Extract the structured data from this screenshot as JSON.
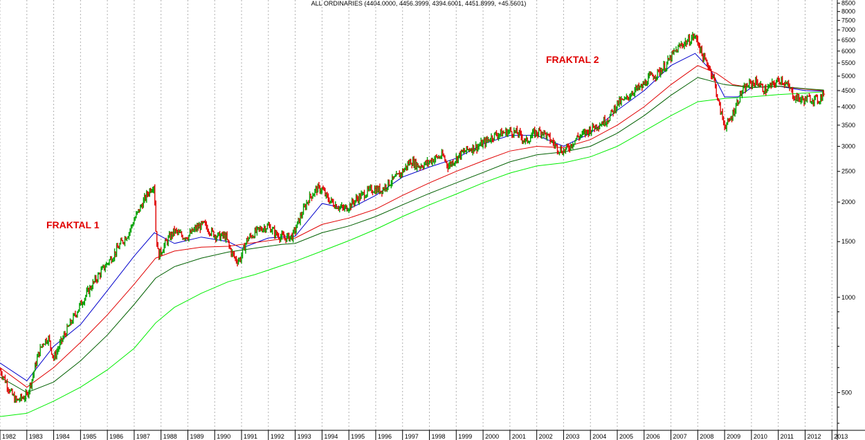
{
  "chart_data": {
    "type": "line",
    "title": "ALL ORDINARIES (4404.0000, 4456.3999, 4394.6001, 4451.8999, +45.5601)",
    "y_scale": "log",
    "ylim": [
      380,
      8700
    ],
    "xlim": [
      1982.0,
      2013.2
    ],
    "x_ticks": [
      "1982",
      "1983",
      "1984",
      "1985",
      "1986",
      "1987",
      "1988",
      "1989",
      "1990",
      "1991",
      "1992",
      "1993",
      "1994",
      "1995",
      "1996",
      "1997",
      "1998",
      "1999",
      "2000",
      "2001",
      "2002",
      "2003",
      "2004",
      "2005",
      "2006",
      "2007",
      "2008",
      "2009",
      "2010",
      "2011",
      "2012",
      "2013"
    ],
    "y_ticks": [
      500,
      1000,
      1500,
      2000,
      2500,
      3000,
      3500,
      4000,
      4500,
      5000,
      5500,
      6000,
      6500,
      7000,
      7500,
      8000,
      8500
    ],
    "grid": "vertical dotted",
    "annotations": [
      {
        "text": "FRAKTAL 1",
        "x": 1983.8,
        "y": 1650
      },
      {
        "text": "FRAKTAL 2",
        "x": 2005.4,
        "y": 6200
      }
    ],
    "price_series": {
      "name": "",
      "up_color": "#00a000",
      "down_color": "#e00000",
      "x": [
        1982.0,
        1982.2,
        1982.4,
        1982.6,
        1982.8,
        1983.0,
        1983.2,
        1983.4,
        1983.6,
        1983.8,
        1984.0,
        1984.2,
        1984.4,
        1984.6,
        1984.8,
        1985.0,
        1985.3,
        1985.6,
        1985.9,
        1986.2,
        1986.5,
        1986.8,
        1987.0,
        1987.2,
        1987.4,
        1987.6,
        1987.75,
        1987.8,
        1987.9,
        1988.2,
        1988.5,
        1988.8,
        1989.0,
        1989.3,
        1989.6,
        1989.9,
        1990.1,
        1990.4,
        1990.6,
        1990.8,
        1990.95,
        1991.2,
        1991.5,
        1991.8,
        1992.0,
        1992.3,
        1992.6,
        1992.9,
        1993.2,
        1993.5,
        1993.8,
        1994.0,
        1994.2,
        1994.5,
        1994.8,
        1995.0,
        1995.3,
        1995.6,
        1995.9,
        1996.2,
        1996.5,
        1996.8,
        1997.0,
        1997.3,
        1997.6,
        1997.9,
        1998.2,
        1998.5,
        1998.7,
        1998.9,
        1999.2,
        1999.5,
        1999.8,
        2000.1,
        2000.4,
        2000.7,
        2001.0,
        2001.3,
        2001.6,
        2001.9,
        2002.2,
        2002.5,
        2002.8,
        2003.0,
        2003.2,
        2003.5,
        2003.8,
        2004.1,
        2004.4,
        2004.7,
        2005.0,
        2005.3,
        2005.6,
        2005.9,
        2006.2,
        2006.5,
        2006.8,
        2007.1,
        2007.4,
        2007.7,
        2007.85,
        2008.0,
        2008.2,
        2008.4,
        2008.6,
        2008.8,
        2009.0,
        2009.15,
        2009.3,
        2009.6,
        2009.9,
        2010.2,
        2010.5,
        2010.8,
        2011.1,
        2011.4,
        2011.6,
        2011.9,
        2012.2,
        2012.5,
        2012.7
      ],
      "close": [
        590,
        545,
        500,
        470,
        480,
        490,
        555,
        650,
        720,
        745,
        640,
        700,
        760,
        820,
        880,
        950,
        1050,
        1150,
        1250,
        1350,
        1480,
        1600,
        1760,
        1900,
        2050,
        2200,
        2280,
        1650,
        1350,
        1500,
        1620,
        1560,
        1560,
        1650,
        1700,
        1600,
        1560,
        1560,
        1400,
        1310,
        1320,
        1520,
        1600,
        1660,
        1680,
        1580,
        1540,
        1560,
        1800,
        2050,
        2200,
        2200,
        2050,
        1960,
        1900,
        1940,
        2050,
        2130,
        2200,
        2180,
        2300,
        2400,
        2500,
        2700,
        2600,
        2650,
        2750,
        2800,
        2600,
        2700,
        2850,
        2950,
        3000,
        3100,
        3250,
        3300,
        3350,
        3300,
        3100,
        3300,
        3350,
        3150,
        2950,
        2900,
        2980,
        3200,
        3300,
        3450,
        3550,
        3700,
        4100,
        4200,
        4500,
        4600,
        4950,
        5100,
        5400,
        5900,
        6300,
        6500,
        6700,
        6450,
        5700,
        5400,
        4900,
        4000,
        3500,
        3550,
        3800,
        4400,
        4700,
        4800,
        4500,
        4700,
        4900,
        4600,
        4300,
        4200,
        4250,
        4200,
        4450
      ]
    },
    "series": [
      {
        "name": "",
        "color": "#0000cc",
        "x": [
          1982.0,
          1983.0,
          1984.0,
          1985.0,
          1986.0,
          1987.0,
          1987.75,
          1988.5,
          1989.5,
          1990.5,
          1991.0,
          1992.0,
          1993.0,
          1994.0,
          1995.0,
          1996.0,
          1997.0,
          1998.0,
          1999.0,
          2000.0,
          2001.0,
          2002.0,
          2003.0,
          2004.0,
          2005.0,
          2006.0,
          2007.0,
          2007.9,
          2008.5,
          2009.0,
          2009.5,
          2010.0,
          2011.0,
          2012.0,
          2012.7
        ],
        "values": [
          620,
          545,
          700,
          820,
          1050,
          1350,
          1600,
          1480,
          1550,
          1500,
          1430,
          1540,
          1560,
          1980,
          1900,
          2100,
          2400,
          2580,
          2750,
          3050,
          3250,
          3250,
          3000,
          3300,
          3900,
          4500,
          5400,
          5900,
          5200,
          4300,
          4300,
          4600,
          4650,
          4500,
          4480
        ]
      },
      {
        "name": "",
        "color": "#e00000",
        "x": [
          1982.0,
          1983.0,
          1984.0,
          1985.0,
          1986.0,
          1987.0,
          1987.8,
          1988.5,
          1989.5,
          1990.5,
          1991.5,
          1992.5,
          1993.0,
          1994.0,
          1995.0,
          1996.0,
          1997.0,
          1998.0,
          1999.0,
          2000.0,
          2001.0,
          2002.0,
          2003.0,
          2004.0,
          2005.0,
          2006.0,
          2007.0,
          2008.0,
          2008.7,
          2009.3,
          2010.0,
          2011.0,
          2012.0,
          2012.7
        ],
        "values": [
          600,
          520,
          600,
          720,
          880,
          1100,
          1330,
          1400,
          1440,
          1450,
          1490,
          1530,
          1540,
          1700,
          1780,
          1900,
          2100,
          2300,
          2500,
          2700,
          2900,
          3000,
          2970,
          3150,
          3500,
          4000,
          4700,
          5400,
          5100,
          4700,
          4600,
          4650,
          4550,
          4500
        ]
      },
      {
        "name": "",
        "color": "#006000",
        "x": [
          1982.0,
          1983.0,
          1984.0,
          1985.0,
          1986.0,
          1987.0,
          1987.8,
          1988.5,
          1989.5,
          1990.5,
          1991.5,
          1992.5,
          1993.0,
          1994.0,
          1995.0,
          1996.0,
          1997.0,
          1998.0,
          1999.0,
          2000.0,
          2001.0,
          2002.0,
          2003.0,
          2004.0,
          2005.0,
          2006.0,
          2007.0,
          2008.0,
          2009.0,
          2010.0,
          2011.0,
          2012.0,
          2012.7
        ],
        "values": [
          560,
          500,
          540,
          630,
          760,
          950,
          1150,
          1250,
          1330,
          1390,
          1430,
          1470,
          1480,
          1600,
          1680,
          1800,
          1960,
          2130,
          2300,
          2480,
          2680,
          2820,
          2880,
          3000,
          3300,
          3750,
          4350,
          4950,
          4700,
          4600,
          4650,
          4560,
          4520
        ]
      },
      {
        "name": "",
        "color": "#00ee00",
        "x": [
          1982.0,
          1983.0,
          1984.0,
          1985.0,
          1986.0,
          1987.0,
          1987.8,
          1988.5,
          1989.5,
          1990.5,
          1991.5,
          1992.5,
          1993.0,
          1994.0,
          1995.0,
          1996.0,
          1997.0,
          1998.0,
          1999.0,
          2000.0,
          2001.0,
          2002.0,
          2003.0,
          2004.0,
          2005.0,
          2006.0,
          2007.0,
          2008.0,
          2009.0,
          2010.0,
          2011.0,
          2012.0,
          2012.7
        ],
        "values": [
          420,
          430,
          470,
          520,
          590,
          690,
          830,
          930,
          1030,
          1120,
          1180,
          1260,
          1300,
          1400,
          1510,
          1640,
          1800,
          1960,
          2120,
          2300,
          2470,
          2600,
          2660,
          2780,
          3000,
          3350,
          3750,
          4150,
          4250,
          4300,
          4370,
          4420,
          4460
        ]
      }
    ]
  }
}
